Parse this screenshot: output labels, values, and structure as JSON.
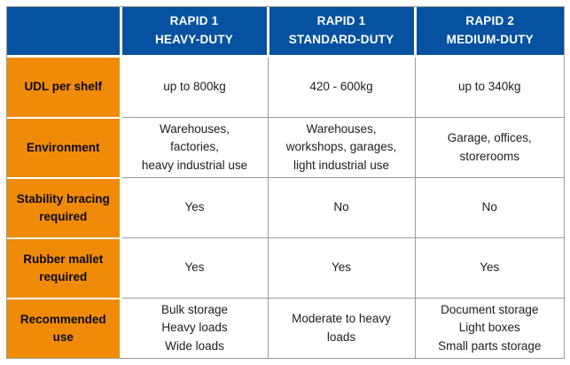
{
  "colors": {
    "header_bg": "#0652A0",
    "label_bg": "#F08B0A",
    "grid_line": "#9B9B9B",
    "header_text": "#FFFFFF",
    "label_text": "#0A0A0A",
    "data_text": "#1D1D1B"
  },
  "table": {
    "corner": "",
    "col_headers": [
      "RAPID 1\nHEAVY-DUTY",
      "RAPID 1\nSTANDARD-DUTY",
      "RAPID 2\nMEDIUM-DUTY"
    ],
    "rows": [
      {
        "label": "UDL per shelf",
        "cells": [
          "up to 800kg",
          "420 - 600kg",
          "up to 340kg"
        ]
      },
      {
        "label": "Environment",
        "cells": [
          "Warehouses,\nfactories,\nheavy industrial use",
          "Warehouses,\nworkshops, garages,\nlight industrial use",
          "Garage, offices,\nstorerooms"
        ]
      },
      {
        "label": "Stability bracing\nrequired",
        "cells": [
          "Yes",
          "No",
          "No"
        ]
      },
      {
        "label": "Rubber mallet\nrequired",
        "cells": [
          "Yes",
          "Yes",
          "Yes"
        ]
      },
      {
        "label": "Recommended\nuse",
        "cells": [
          "Bulk storage\nHeavy loads\nWide loads",
          "Moderate to heavy\nloads",
          "Document storage\nLight boxes\nSmall parts storage"
        ]
      }
    ]
  },
  "chart_data": {
    "type": "table",
    "title": "",
    "columns": [
      "",
      "RAPID 1 HEAVY-DUTY",
      "RAPID 1 STANDARD-DUTY",
      "RAPID 2 MEDIUM-DUTY"
    ],
    "rows": [
      [
        "UDL per shelf",
        "up to 800kg",
        "420 - 600kg",
        "up to 340kg"
      ],
      [
        "Environment",
        "Warehouses, factories, heavy industrial use",
        "Warehouses, workshops, garages, light industrial use",
        "Garage, offices, storerooms"
      ],
      [
        "Stability bracing required",
        "Yes",
        "No",
        "No"
      ],
      [
        "Rubber mallet required",
        "Yes",
        "Yes",
        "Yes"
      ],
      [
        "Recommended use",
        "Bulk storage; Heavy loads; Wide loads",
        "Moderate to heavy loads",
        "Document storage; Light boxes; Small parts storage"
      ]
    ],
    "legend_position": "none",
    "grid": true
  }
}
